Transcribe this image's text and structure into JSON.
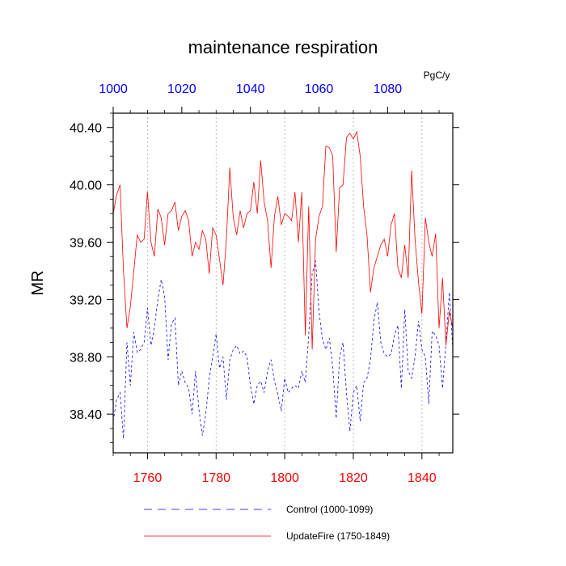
{
  "chart_data": {
    "type": "line",
    "title": "maintenance respiration",
    "units": "PgC/y",
    "ylabel": "MR",
    "ylim": [
      38.13,
      40.5
    ],
    "yticks": [
      38.4,
      38.8,
      39.2,
      39.6,
      40.0,
      40.4
    ],
    "ytick_labels": [
      "38.40",
      "38.80",
      "39.20",
      "39.60",
      "40.00",
      "40.40"
    ],
    "x_bottom": {
      "range": [
        1750,
        1849
      ],
      "ticks": [
        1760,
        1780,
        1800,
        1820,
        1840
      ],
      "tick_labels": [
        "1760",
        "1780",
        "1800",
        "1820",
        "1840"
      ],
      "color": "#ff0000"
    },
    "x_top": {
      "range": [
        1000,
        1099
      ],
      "ticks": [
        1000,
        1020,
        1040,
        1060,
        1080
      ],
      "tick_labels": [
        "1000",
        "1020",
        "1040",
        "1060",
        "1080"
      ],
      "color": "#0000ff"
    },
    "grid_x": [
      1760,
      1780,
      1800,
      1820,
      1840
    ],
    "legend_position": "bottom",
    "series": [
      {
        "name": "Control (1000-1099)",
        "axis": "top",
        "color": "#0000ff",
        "dash": "3 3",
        "x_start": 1000,
        "values": [
          38.35,
          38.5,
          38.55,
          38.23,
          38.9,
          38.6,
          38.97,
          38.83,
          38.85,
          38.9,
          39.14,
          38.88,
          39.0,
          39.2,
          39.34,
          39.22,
          38.78,
          39.03,
          39.07,
          38.6,
          38.7,
          38.62,
          38.58,
          38.4,
          38.7,
          38.43,
          38.25,
          38.4,
          38.65,
          38.8,
          38.96,
          38.72,
          38.8,
          38.5,
          38.78,
          38.85,
          38.88,
          38.82,
          38.84,
          38.8,
          38.6,
          38.47,
          38.6,
          38.63,
          38.55,
          38.7,
          38.78,
          38.63,
          38.54,
          38.42,
          38.65,
          38.55,
          38.58,
          38.6,
          38.58,
          38.7,
          38.62,
          38.95,
          39.38,
          39.47,
          39.12,
          38.92,
          38.85,
          38.93,
          38.73,
          38.37,
          38.8,
          38.9,
          38.55,
          38.28,
          38.55,
          38.6,
          38.35,
          38.62,
          38.65,
          38.78,
          39.05,
          39.18,
          38.9,
          38.82,
          38.8,
          38.82,
          38.95,
          39.02,
          38.58,
          39.13,
          38.7,
          38.65,
          38.8,
          39.05,
          38.85,
          38.8,
          38.47,
          38.98,
          38.95,
          38.88,
          38.58,
          38.9,
          39.25,
          38.85
        ]
      },
      {
        "name": "UpdateFire (1750-1849)",
        "axis": "bottom",
        "color": "#ff0000",
        "dash": "",
        "x_start": 1750,
        "values": [
          39.8,
          39.93,
          40.0,
          39.4,
          39.0,
          39.15,
          39.4,
          39.65,
          39.6,
          39.62,
          39.95,
          39.6,
          39.5,
          39.83,
          39.77,
          39.58,
          39.8,
          39.82,
          39.88,
          39.68,
          39.78,
          39.82,
          39.75,
          39.5,
          39.6,
          39.55,
          39.68,
          39.62,
          39.38,
          39.7,
          39.65,
          39.48,
          39.3,
          39.62,
          40.12,
          39.77,
          39.65,
          39.82,
          39.7,
          39.8,
          39.82,
          40.02,
          39.8,
          40.17,
          39.88,
          39.75,
          39.42,
          39.78,
          39.92,
          39.72,
          39.8,
          39.78,
          39.75,
          39.95,
          39.6,
          39.95,
          38.95,
          39.85,
          38.85,
          39.62,
          39.78,
          39.85,
          40.27,
          40.26,
          40.2,
          39.53,
          39.98,
          40.0,
          40.33,
          40.36,
          40.32,
          40.37,
          40.2,
          39.85,
          39.65,
          39.25,
          39.42,
          39.5,
          39.58,
          39.62,
          39.5,
          39.72,
          39.8,
          39.42,
          39.35,
          39.58,
          39.35,
          40.1,
          39.62,
          39.32,
          39.1,
          39.77,
          39.6,
          39.5,
          39.66,
          39.0,
          39.35,
          38.88,
          39.12,
          39.0
        ]
      }
    ]
  }
}
